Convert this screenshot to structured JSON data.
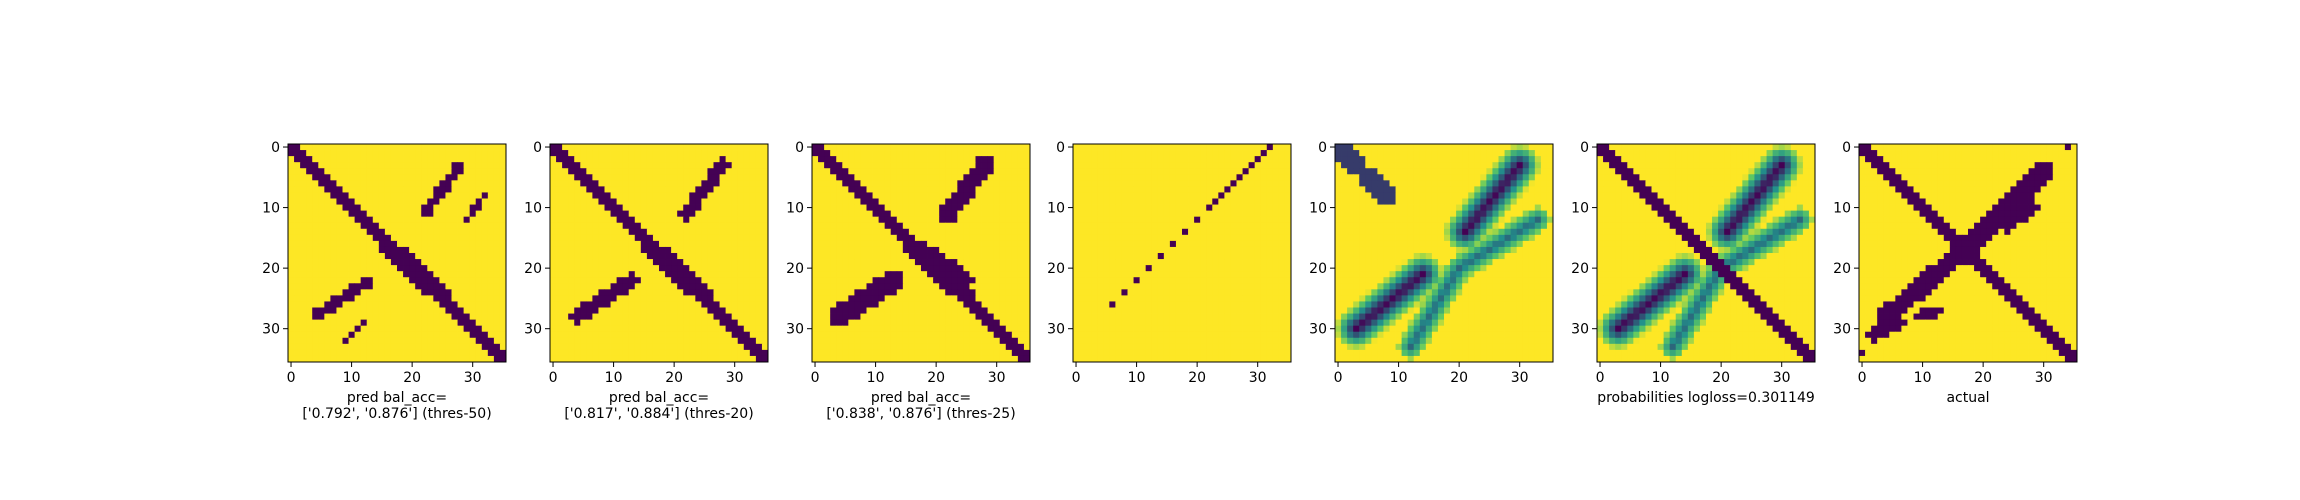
{
  "chart_data": [
    {
      "type": "heatmap",
      "colormap": "viridis",
      "caption": [
        "pred bal_acc=",
        "['0.792', '0.876'] (thres-50)"
      ],
      "xlim": [
        0,
        35
      ],
      "ylim": [
        0,
        35
      ],
      "xticks": [
        "0",
        "10",
        "20",
        "30"
      ],
      "yticks": [
        "0",
        "10",
        "20",
        "30"
      ],
      "content": "binary prediction: anti-diagonal-free main diagonal band plus two off-diagonal blobs"
    },
    {
      "type": "heatmap",
      "colormap": "viridis",
      "caption": [
        "pred bal_acc=",
        "['0.817', '0.884'] (thres-20)"
      ],
      "xlim": [
        0,
        35
      ],
      "ylim": [
        0,
        35
      ],
      "xticks": [
        "0",
        "10",
        "20",
        "30"
      ],
      "yticks": [
        "0",
        "10",
        "20",
        "30"
      ]
    },
    {
      "type": "heatmap",
      "colormap": "viridis",
      "caption": [
        "pred bal_acc=",
        "['0.838', '0.876'] (thres-25)"
      ],
      "xlim": [
        0,
        35
      ],
      "ylim": [
        0,
        35
      ],
      "xticks": [
        "0",
        "10",
        "20",
        "30"
      ],
      "yticks": [
        "0",
        "10",
        "20",
        "30"
      ]
    },
    {
      "type": "heatmap",
      "colormap": "viridis",
      "caption": [],
      "xlim": [
        0,
        35
      ],
      "ylim": [
        0,
        35
      ],
      "xticks": [
        "0",
        "10",
        "20",
        "30"
      ],
      "yticks": [
        "0",
        "10",
        "20",
        "30"
      ]
    },
    {
      "type": "heatmap",
      "colormap": "viridis",
      "caption": [],
      "xlim": [
        0,
        35
      ],
      "ylim": [
        0,
        35
      ],
      "xticks": [
        "0",
        "10",
        "20",
        "30"
      ],
      "yticks": [
        "0",
        "10",
        "20",
        "30"
      ]
    },
    {
      "type": "heatmap",
      "colormap": "viridis",
      "caption": [
        "probabilities logloss=0.301149"
      ],
      "xlim": [
        0,
        35
      ],
      "ylim": [
        0,
        35
      ],
      "xticks": [
        "0",
        "10",
        "20",
        "30"
      ],
      "yticks": [
        "0",
        "10",
        "20",
        "30"
      ]
    },
    {
      "type": "heatmap",
      "colormap": "viridis",
      "caption": [
        "actual"
      ],
      "xlim": [
        0,
        35
      ],
      "ylim": [
        0,
        35
      ],
      "xticks": [
        "0",
        "10",
        "20",
        "30"
      ],
      "yticks": [
        "0",
        "10",
        "20",
        "30"
      ]
    }
  ],
  "colors": {
    "low": "#440154",
    "mid1": "#21918c",
    "mid2": "#5ec962",
    "high": "#fde725"
  }
}
